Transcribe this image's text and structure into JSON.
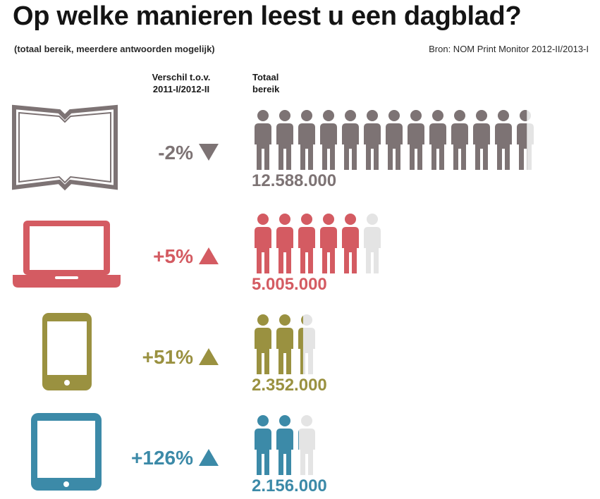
{
  "title": "Op welke manieren leest u een dagblad?",
  "subtitle": "(totaal bereik, meerdere antwoorden mogelijk)",
  "source": "Bron: NOM Print Monitor 2012-II/2013-I",
  "column_headers": {
    "change": [
      "Verschil t.o.v.",
      "2011-I/2012-II"
    ],
    "reach": [
      "Totaal",
      "bereik"
    ]
  },
  "chart_data": {
    "type": "bar",
    "categories": [
      "Krant",
      "PC",
      "Smart phone",
      "Tablet"
    ],
    "series": [
      {
        "values": [
          12588000,
          5005000,
          2352000,
          2156000
        ],
        "labels": [
          "12.588.000",
          "5.005.000",
          "2.352.000",
          "2.156.000"
        ]
      }
    ],
    "change_labels": [
      "-2%",
      "+5%",
      "+51%",
      "+126%"
    ],
    "change_direction": [
      "down",
      "up",
      "up",
      "up"
    ],
    "category_labels": [
      "Krant",
      "PC",
      "Smart\nphone",
      "Tablet"
    ],
    "unit_per_icon": 1000000,
    "colors": [
      "#7d7374",
      "#d45b62",
      "#9a9140",
      "#3c8aa8"
    ],
    "empty_icon_color": "#e4e4e4",
    "icons": [
      "newspaper-icon",
      "laptop-icon",
      "smartphone-icon",
      "tablet-icon"
    ]
  }
}
